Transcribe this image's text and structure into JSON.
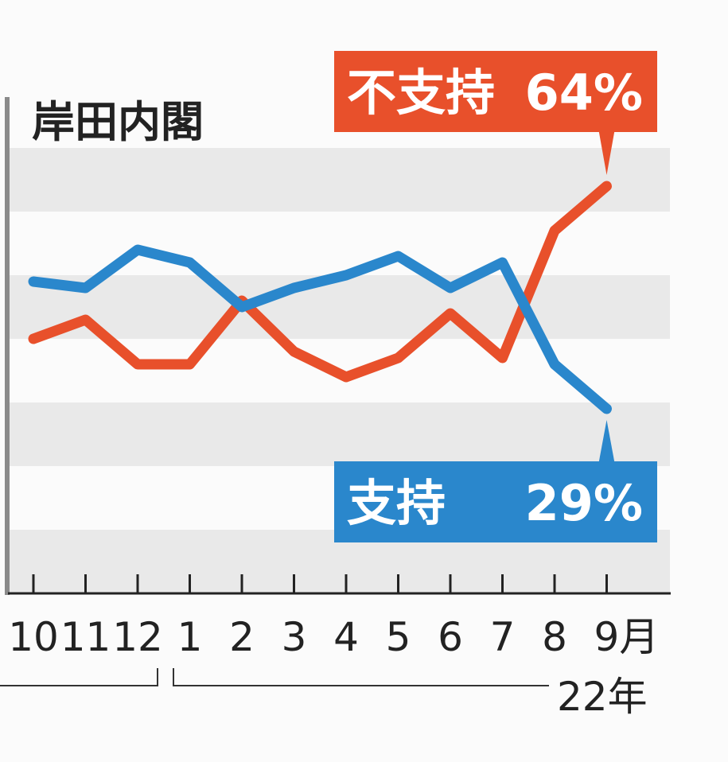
{
  "chart_data": {
    "type": "line",
    "title": "岸田内閣",
    "categories": [
      "10",
      "11",
      "12",
      "1",
      "2",
      "3",
      "4",
      "5",
      "6",
      "7",
      "8",
      "9月"
    ],
    "month_suffix": "月",
    "year_label": "22年",
    "ylim": [
      0,
      80
    ],
    "grid_bands": true,
    "series": [
      {
        "name": "不支持",
        "color": "#e8502b",
        "values": [
          40,
          43,
          36,
          36,
          46,
          38,
          34,
          37,
          44,
          37,
          57,
          64
        ],
        "label_value": "64%"
      },
      {
        "name": "支持",
        "color": "#2a87cc",
        "values": [
          49,
          48,
          54,
          52,
          45,
          48,
          50,
          53,
          48,
          52,
          36,
          29
        ],
        "label_value": "29%"
      }
    ]
  }
}
